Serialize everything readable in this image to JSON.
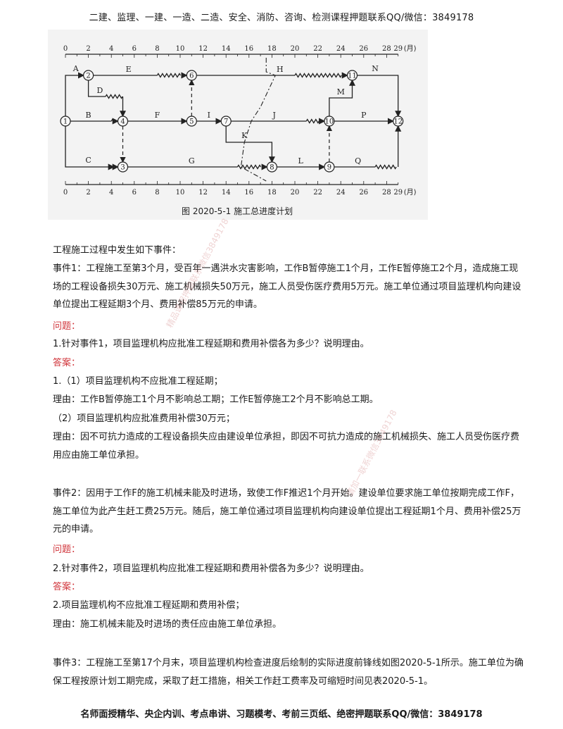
{
  "header": {
    "text": "二建、监理、一建、一造、二造、安全、消防、咨询、检测课程押题联系QQ/微信：3849178"
  },
  "figure": {
    "caption": "图 2020-5-1    施工总进度计划",
    "month_unit": "(月)",
    "ticks": [
      "0",
      "2",
      "4",
      "6",
      "8",
      "10",
      "12",
      "14",
      "16",
      "18",
      "20",
      "22",
      "24",
      "26",
      "28",
      "29"
    ],
    "nodes": [
      "1",
      "2",
      "3",
      "4",
      "5",
      "6",
      "7",
      "8",
      "9",
      "10",
      "11",
      "12"
    ],
    "activities": [
      "A",
      "B",
      "C",
      "D",
      "E",
      "F",
      "G",
      "H",
      "I",
      "J",
      "K",
      "L",
      "M",
      "N",
      "P",
      "Q"
    ]
  },
  "content": {
    "intro": "工程施工过程中发生如下事件：",
    "event1": "事件1：工程施工至第3个月，受百年一遇洪水灾害影响，工作B暂停施工1个月，工作E暂停施工2个月，造成施工现场的工程设备损失30万元、施工机械损失50万元，施工人员受伤医疗费用5万元。施工单位通过项目监理机构向建设单位提出工程延期3个月、费用补偿85万元的申请。",
    "q_label": "问题：",
    "a_label": "答案：",
    "q1": "1.针对事件1，项目监理机构应批准工程延期和费用补偿各为多少？说明理由。",
    "a1_1": "1.（1）项目监理机构不应批准工程延期；",
    "a1_2": "理由：工作B暂停施工1个月不影响总工期；工作E暂停施工2个月不影响总工期。",
    "a1_3": "（2）项目监理机构应批准费用补偿30万元；",
    "a1_4": "理由：因不可抗力造成的工程设备损失应由建设单位承担，即因不可抗力造成的施工机械损失、施工人员受伤医疗费用应由施工单位承担。",
    "event2": "事件2：因用于工作F的施工机械未能及时进场，致使工作F推迟1个月开始。建设单位要求施工单位按期完成工作F，施工单位为此产生赶工费25万元。随后，施工单位通过项目监理机构向建设单位提出工程延期1个月、费用补偿25万元的申请。",
    "q2": "2.针对事件2，项目监理机构应批准工程延期和费用补偿各为多少？说明理由。",
    "a2_1": "2.项目监理机构不应批准工程延期和费用补偿；",
    "a2_2": "理由：施工机械未能及时进场的责任应由施工单位承担。",
    "event3": "事件3：工程施工至第17个月末，项目监理机构检查进度后绘制的实际进度前锋线如图2020-5-1所示。施工单位为确保工程按原计划工期完成，采取了赶工措施，相关工作赶工费率及可缩短时间见表2020-5-1。"
  },
  "watermarks": [
    "精品课程押题联系微信3849178",
    "请加一联系微信3849178"
  ],
  "footer": {
    "text": "名师面授精华、央企内训、考点串讲、习题模考、考前三页纸、绝密押题联系QQ/微信：3849178"
  }
}
